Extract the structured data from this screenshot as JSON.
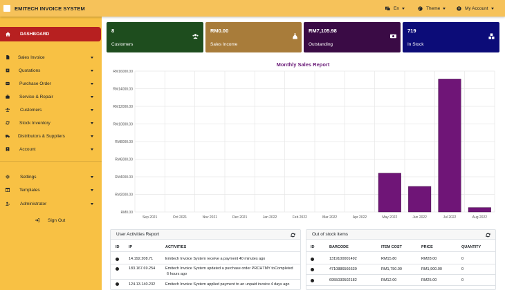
{
  "app": {
    "title": "EMITECH INVOICE SYSTEM"
  },
  "topnav": {
    "language": "En",
    "theme": "Theme",
    "account": "My Account"
  },
  "sidebar": {
    "dashboard": "DASHBOARD",
    "items": [
      {
        "label": "Sales Invoice",
        "icon": "file-icon"
      },
      {
        "label": "Quotations",
        "icon": "quotation-icon"
      },
      {
        "label": "Purchase Order",
        "icon": "purchase-icon"
      },
      {
        "label": "Service & Repair",
        "icon": "repair-icon"
      },
      {
        "label": "Customers",
        "icon": "users-icon"
      },
      {
        "label": "Stock Inventory",
        "icon": "sync-icon"
      },
      {
        "label": "Distributors & Suppliers",
        "icon": "truck-icon"
      },
      {
        "label": "Account",
        "icon": "account-icon"
      }
    ],
    "settings": [
      {
        "label": "Settings",
        "icon": "gear-icon"
      },
      {
        "label": "Templates",
        "icon": "template-icon"
      },
      {
        "label": "Administrator",
        "icon": "admin-icon"
      }
    ],
    "signout": "Sign Out"
  },
  "cards": [
    {
      "value": "8",
      "label": "Customers",
      "color": "#1e4d1e",
      "icon": "users-icon"
    },
    {
      "value": "RM0.00",
      "label": "Sales Income",
      "color": "#a87c3a",
      "icon": "money-bag-icon"
    },
    {
      "value": "RM7,105.98",
      "label": "Outstanding",
      "color": "#3a0b45",
      "icon": "cash-icon"
    },
    {
      "value": "719",
      "label": "In Stock",
      "color": "#0c0c78",
      "icon": "cubes-icon"
    }
  ],
  "chart_data": {
    "type": "bar",
    "title": "Monthly Sales Report",
    "categories": [
      "Sep 2021",
      "Oct 2021",
      "Nov 2021",
      "Dec 2021",
      "Jan 2022",
      "Feb 2022",
      "Mar 2022",
      "Apr 2022",
      "May 2022",
      "Jun 2022",
      "Jul 2022",
      "Aug 2022"
    ],
    "values": [
      0,
      0,
      0,
      0,
      0,
      0,
      0,
      0,
      4400,
      2900,
      15100,
      500
    ],
    "ylim": [
      0,
      16000
    ],
    "yticks": [
      "RM0.00",
      "RM2000.00",
      "RM4000.00",
      "RM6000.00",
      "RM8000.00",
      "RM10000.00",
      "RM12000.00",
      "RM14000.00",
      "RM16000.00"
    ],
    "bar_color": "#6f1577",
    "grid": true
  },
  "activities": {
    "title": "User Activities Report",
    "headers": [
      "ID",
      "IP",
      "ACTIVITIES"
    ],
    "rows": [
      {
        "ip": "14.192.208.71",
        "act1": "Emitech Invoice System  receive a payment  40 minutes ago",
        "act2": ""
      },
      {
        "ip": "183.167.69.254",
        "act1": "Emitech Invoice System  updated a purchase order PRCHTMY toCompleted",
        "act2": "6 hours ago"
      },
      {
        "ip": "124.13.140.232",
        "act1": "Emitech Invoice System  applied payment to an unpaid invoice  4 days ago",
        "act2": ""
      }
    ]
  },
  "stock": {
    "title": "Out of stock items",
    "headers": [
      "ID",
      "BARCODE",
      "ITEM COST",
      "PRICE",
      "QUANTITY"
    ],
    "rows": [
      {
        "barcode": "1319100001492",
        "cost": "RM15.80",
        "price": "RM28.00",
        "qty": "0"
      },
      {
        "barcode": "4710886566630",
        "cost": "RM1,750.00",
        "price": "RM1,900.00",
        "qty": "0"
      },
      {
        "barcode": "6955030502182",
        "cost": "RM12.00",
        "price": "RM25.00",
        "qty": "0"
      }
    ]
  }
}
